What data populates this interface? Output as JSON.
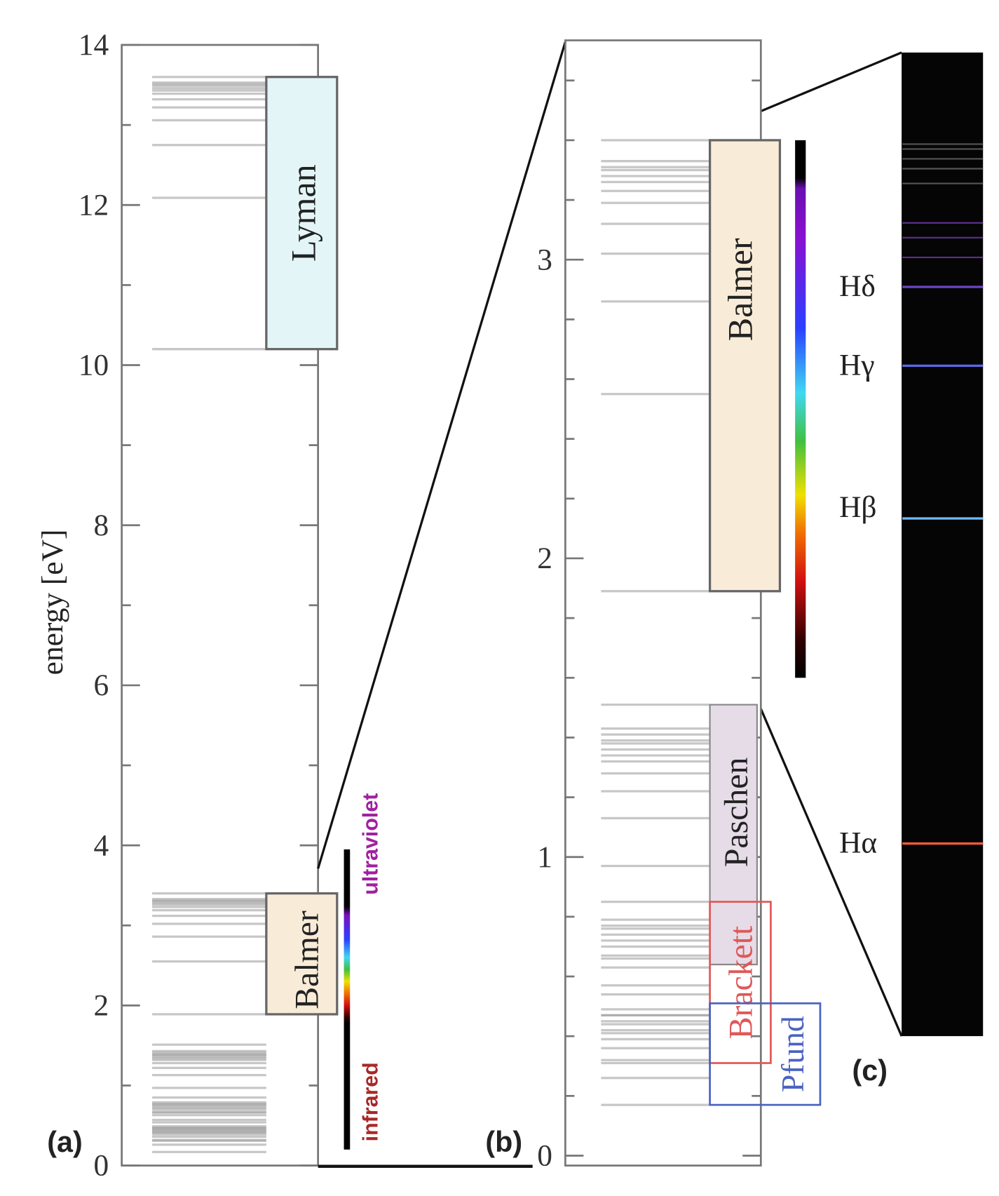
{
  "panel_a": {
    "label": "(a)",
    "ylabel": "energy [eV]",
    "ylim": [
      0,
      14
    ],
    "major_ticks": [
      "0",
      "2",
      "4",
      "6",
      "8",
      "10",
      "12",
      "14"
    ],
    "series_labels": {
      "lyman": "Lyman",
      "balmer": "Balmer"
    },
    "spectrum_bar_labels": {
      "uv": "ultraviolet",
      "ir": "infrared"
    },
    "uv_color": "#a020a0",
    "ir_color": "#a82828"
  },
  "panel_b": {
    "label": "(b)",
    "ylim": [
      0,
      3.75
    ],
    "major_ticks": [
      "0",
      "1",
      "2",
      "3"
    ],
    "series_labels": {
      "balmer": "Balmer",
      "paschen": "Paschen",
      "brackett": "Brackett",
      "pfund": "Pfund"
    },
    "brackett_color": "#e05858",
    "pfund_color": "#4a64c0"
  },
  "panel_c": {
    "label": "(c)",
    "lines": [
      {
        "name": "Hα",
        "energy": 1.89,
        "color": "#ff5a3c"
      },
      {
        "name": "Hβ",
        "energy": 2.55,
        "color": "#6ab8ff"
      },
      {
        "name": "Hγ",
        "energy": 2.86,
        "color": "#5a68e8"
      },
      {
        "name": "Hδ",
        "energy": 3.02,
        "color": "#6a48c8"
      }
    ],
    "faint_lines": [
      3.08,
      3.12,
      3.15,
      3.23,
      3.26,
      3.28,
      3.3,
      3.31
    ],
    "background": "#050505"
  },
  "series": {
    "lyman": {
      "lines": [
        10.2,
        12.09,
        12.75,
        13.06,
        13.22,
        13.32,
        13.39,
        13.43,
        13.46,
        13.49,
        13.51,
        13.53
      ],
      "limit": 13.6,
      "fill": "#e4f5f8"
    },
    "balmer": {
      "lines": [
        1.89,
        2.55,
        2.86,
        3.02,
        3.12,
        3.19,
        3.23,
        3.26,
        3.28,
        3.3,
        3.31,
        3.33
      ],
      "limit": 3.4,
      "fill": "#f8ecd8"
    },
    "paschen": {
      "lines": [
        0.66,
        0.97,
        1.13,
        1.22,
        1.28,
        1.32,
        1.34,
        1.36,
        1.38,
        1.39,
        1.41,
        1.43
      ],
      "limit": 1.51,
      "fill": "#e6dce8"
    },
    "brackett": {
      "lines": [
        0.31,
        0.47,
        0.57,
        0.63,
        0.67,
        0.7,
        0.72,
        0.74,
        0.76,
        0.77,
        0.79
      ],
      "limit": 0.85
    },
    "pfund": {
      "lines": [
        0.17,
        0.26,
        0.32,
        0.36,
        0.39,
        0.41,
        0.42,
        0.44,
        0.45,
        0.47,
        0.49
      ],
      "limit": 0.54
    }
  }
}
